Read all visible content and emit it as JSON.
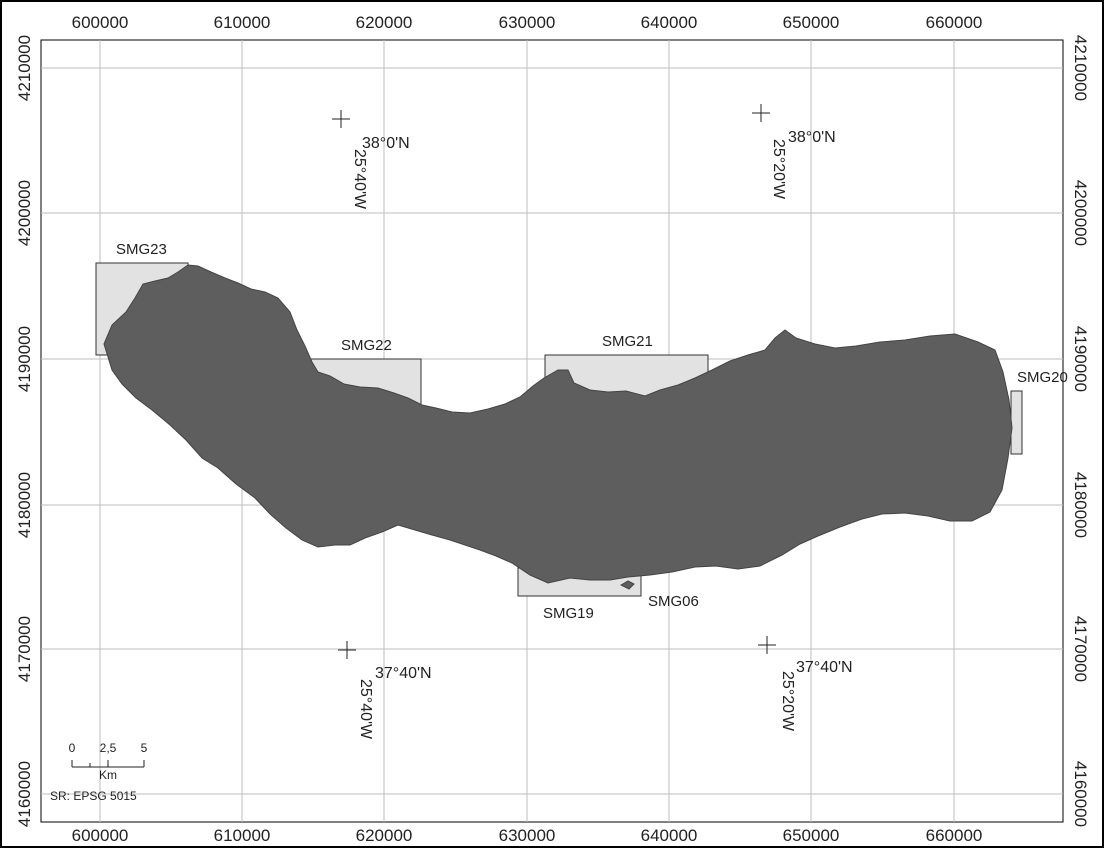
{
  "map": {
    "type": "map",
    "x_ticks": [
      "600000",
      "610000",
      "620000",
      "630000",
      "640000",
      "650000",
      "660000"
    ],
    "y_ticks": [
      "4210000",
      "4200000",
      "4190000",
      "4180000",
      "4170000",
      "4160000"
    ],
    "areas": [
      {
        "id": "SMG23",
        "label": "SMG23"
      },
      {
        "id": "SMG22",
        "label": "SMG22"
      },
      {
        "id": "SMG21",
        "label": "SMG21"
      },
      {
        "id": "SMG20",
        "label": "SMG20"
      },
      {
        "id": "SMG19",
        "label": "SMG19"
      },
      {
        "id": "SMG06",
        "label": "SMG06"
      }
    ],
    "graticule": [
      {
        "lat": "38°0'N",
        "lon": "25°40'W"
      },
      {
        "lat": "38°0'N",
        "lon": "25°20'W"
      },
      {
        "lat": "37°40'N",
        "lon": "25°40'W"
      },
      {
        "lat": "37°40'N",
        "lon": "25°20'W"
      }
    ],
    "scale_bar": {
      "ticks": [
        "0",
        "2,5",
        "5"
      ],
      "unit": "Km"
    },
    "reference_system": "SR: EPSG 5015",
    "colors": {
      "island": "#5e5e5e",
      "area_fill": "#e2e2e2",
      "grid": "#bdbdbd",
      "frame": "#000000"
    }
  }
}
